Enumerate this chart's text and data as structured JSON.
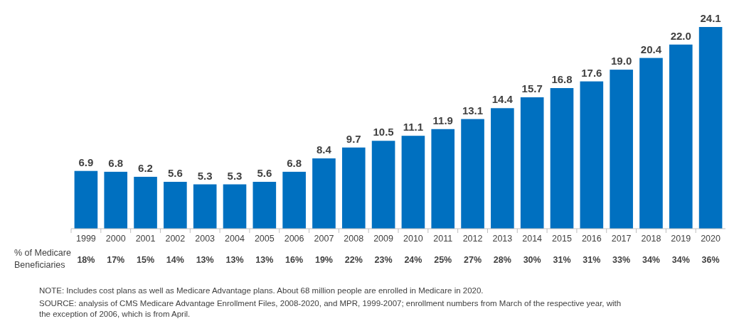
{
  "chart_data": {
    "type": "bar",
    "categories": [
      "1999",
      "2000",
      "2001",
      "2002",
      "2003",
      "2004",
      "2005",
      "2006",
      "2007",
      "2008",
      "2009",
      "2010",
      "2011",
      "2012",
      "2013",
      "2014",
      "2015",
      "2016",
      "2017",
      "2018",
      "2019",
      "2020"
    ],
    "values": [
      6.9,
      6.8,
      6.2,
      5.6,
      5.3,
      5.3,
      5.6,
      6.8,
      8.4,
      9.7,
      10.5,
      11.1,
      11.9,
      13.1,
      14.4,
      15.7,
      16.8,
      17.6,
      19.0,
      20.4,
      22.0,
      24.1
    ],
    "value_labels": [
      "6.9",
      "6.8",
      "6.2",
      "5.6",
      "5.3",
      "5.3",
      "5.6",
      "6.8",
      "8.4",
      "9.7",
      "10.5",
      "11.1",
      "11.9",
      "13.1",
      "14.4",
      "15.7",
      "16.8",
      "17.6",
      "19.0",
      "20.4",
      "22.0",
      "24.1"
    ],
    "color": "#0070c0",
    "annotations": [
      "% of Medicare Beneficiaries",
      "18%",
      "17%",
      "15%",
      "14%",
      "13%",
      "13%",
      "13%",
      "16%",
      "19%",
      "22%",
      "23%",
      "24%",
      "25%",
      "27%",
      "28%",
      "30%",
      "31%",
      "31%",
      "33%",
      "34%",
      "34%",
      "36%",
      "NOTE: Includes  cost plans as well as Medicare Advantage plans. About 68 million people are enrolled in Medicare in 2020.",
      "SOURCE: analysis of CMS Medicare Advantage Enrollment Files, 2008-2020, and MPR, 1999-2007; enrollment numbers from March of the respective year, with the exception of 2006, which is from April."
    ]
  }
}
